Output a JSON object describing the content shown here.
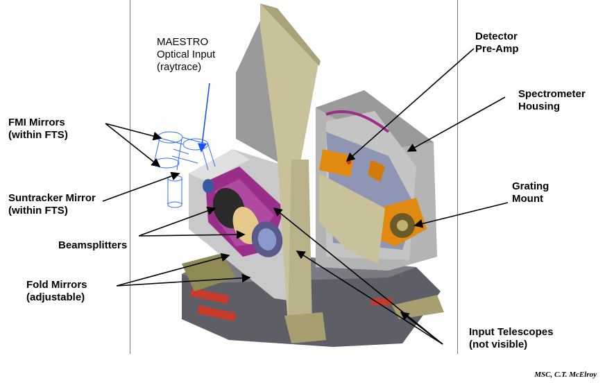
{
  "labels": {
    "maestro": [
      "MAESTRO",
      "Optical Input",
      "(raytrace)"
    ],
    "fmi": [
      "FMI Mirrors",
      "(within FTS)"
    ],
    "suntracker": [
      "Suntracker Mirror",
      "(within FTS)"
    ],
    "beamsplitters": [
      "Beamsplitters"
    ],
    "fold": [
      "Fold Mirrors",
      "(adjustable)"
    ],
    "detector": [
      "Detector",
      "Pre-Amp"
    ],
    "spectrometer": [
      "Spectrometer",
      "Housing"
    ],
    "grating": [
      "Grating",
      "Mount"
    ],
    "telescopes": [
      "Input Telescopes",
      "(not visible)"
    ]
  },
  "credit": "MSC, C.T. McElroy",
  "colors": {
    "housing": "#a8a8a8",
    "bracket": "#c8c19a",
    "magenta": "#9a2f8a",
    "gold": "#e08a10",
    "wire": "#2a6fff",
    "base": "#6b6b72",
    "red": "#c83a2a"
  }
}
